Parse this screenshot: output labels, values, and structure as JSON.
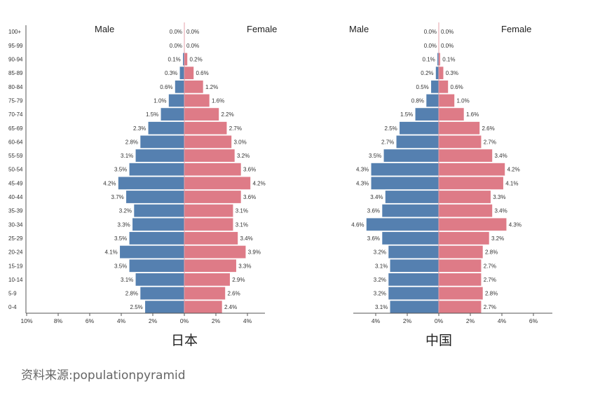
{
  "chart_data": [
    {
      "type": "bar",
      "orientation": "horizontal-pyramid",
      "title": "日本",
      "categories": [
        "100+",
        "95-99",
        "90-94",
        "85-89",
        "80-84",
        "75-79",
        "70-74",
        "65-69",
        "60-64",
        "55-59",
        "50-54",
        "45-49",
        "40-44",
        "35-39",
        "30-34",
        "25-29",
        "20-24",
        "15-19",
        "10-14",
        "5-9",
        "0-4"
      ],
      "series": [
        {
          "name": "Male",
          "values": [
            0.0,
            0.0,
            0.1,
            0.3,
            0.6,
            1.0,
            1.5,
            2.3,
            2.8,
            3.1,
            3.5,
            4.2,
            3.7,
            3.2,
            3.3,
            3.5,
            4.1,
            3.5,
            3.1,
            2.8,
            2.5
          ]
        },
        {
          "name": "Female",
          "values": [
            0.0,
            0.0,
            0.2,
            0.6,
            1.2,
            1.6,
            2.2,
            2.7,
            3.0,
            3.2,
            3.6,
            4.2,
            3.6,
            3.1,
            3.1,
            3.4,
            3.9,
            3.3,
            2.9,
            2.6,
            2.4
          ]
        }
      ],
      "x_ticks": [
        "10%",
        "8%",
        "6%",
        "4%",
        "2%",
        "0%",
        "2%",
        "4%"
      ],
      "xlim_male": [
        10,
        0
      ],
      "xlim_female": [
        0,
        4.8
      ],
      "unit": "%",
      "grid": false
    },
    {
      "type": "bar",
      "orientation": "horizontal-pyramid",
      "title": "中国",
      "categories": [
        "100+",
        "95-99",
        "90-94",
        "85-89",
        "80-84",
        "75-79",
        "70-74",
        "65-69",
        "60-64",
        "55-59",
        "50-54",
        "45-49",
        "40-44",
        "35-39",
        "30-34",
        "25-29",
        "20-24",
        "15-19",
        "10-14",
        "5-9",
        "0-4"
      ],
      "series": [
        {
          "name": "Male",
          "values": [
            0.0,
            0.0,
            0.1,
            0.2,
            0.5,
            0.8,
            1.5,
            2.5,
            2.7,
            3.5,
            4.3,
            4.3,
            3.4,
            3.6,
            4.6,
            3.6,
            3.2,
            3.1,
            3.2,
            3.2,
            3.1
          ]
        },
        {
          "name": "Female",
          "values": [
            0.0,
            0.0,
            0.1,
            0.3,
            0.6,
            1.0,
            1.6,
            2.6,
            2.7,
            3.4,
            4.2,
            4.1,
            3.3,
            3.4,
            4.3,
            3.2,
            2.8,
            2.7,
            2.7,
            2.8,
            2.7
          ]
        }
      ],
      "x_ticks": [
        "4%",
        "2%",
        "0%",
        "2%",
        "4%",
        "6%"
      ],
      "xlim_male": [
        5.1,
        0
      ],
      "xlim_female": [
        0,
        7.3
      ],
      "unit": "%",
      "grid": false
    }
  ],
  "colors": {
    "male": "#5580b0",
    "female": "#de7b87"
  },
  "source": "资料来源:populationpyramid"
}
